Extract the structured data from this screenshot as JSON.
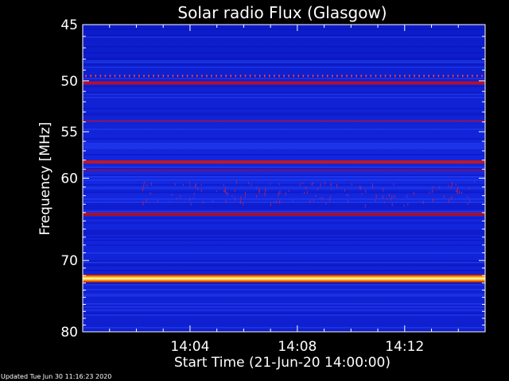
{
  "chart_data": {
    "type": "heatmap",
    "title": "Solar radio Flux (Glasgow)",
    "xlabel": "Start Time (21-Jun-20 14:00:00)",
    "ylabel": "Frequency [MHz]",
    "x_unit": "minutes after 14:00",
    "xlim": [
      0,
      15
    ],
    "ylim": [
      45,
      80
    ],
    "y_scale": "log",
    "xticks": [
      {
        "value": 4,
        "label": "14:04"
      },
      {
        "value": 8,
        "label": "14:08"
      },
      {
        "value": 12,
        "label": "14:12"
      }
    ],
    "yticks": [
      {
        "value": 45,
        "label": "45"
      },
      {
        "value": 50,
        "label": "50"
      },
      {
        "value": 55,
        "label": "55"
      },
      {
        "value": 60,
        "label": "60"
      },
      {
        "value": 70,
        "label": "70"
      },
      {
        "value": 80,
        "label": "80"
      }
    ],
    "background_color": "#1a2ad8",
    "emission_bands": [
      {
        "freq": 50.2,
        "intensity": "medium",
        "color": "#c01020"
      },
      {
        "freq": 53.9,
        "intensity": "low",
        "color": "#a01040"
      },
      {
        "freq": 58.2,
        "intensity": "medium",
        "color": "#c81818"
      },
      {
        "freq": 59.1,
        "intensity": "low",
        "color": "#901050"
      },
      {
        "freq": 64.2,
        "intensity": "medium",
        "color": "#b01020"
      },
      {
        "freq": 72.4,
        "intensity": "high",
        "color": "#fff6c0"
      }
    ],
    "colors": {
      "low": "#0a10b8",
      "mid": "#3050ff",
      "high": "#ff2010",
      "max": "#ffffa0"
    }
  },
  "footer": {
    "updated": "Updated Tue Jun 30 11:16:23 2020"
  }
}
